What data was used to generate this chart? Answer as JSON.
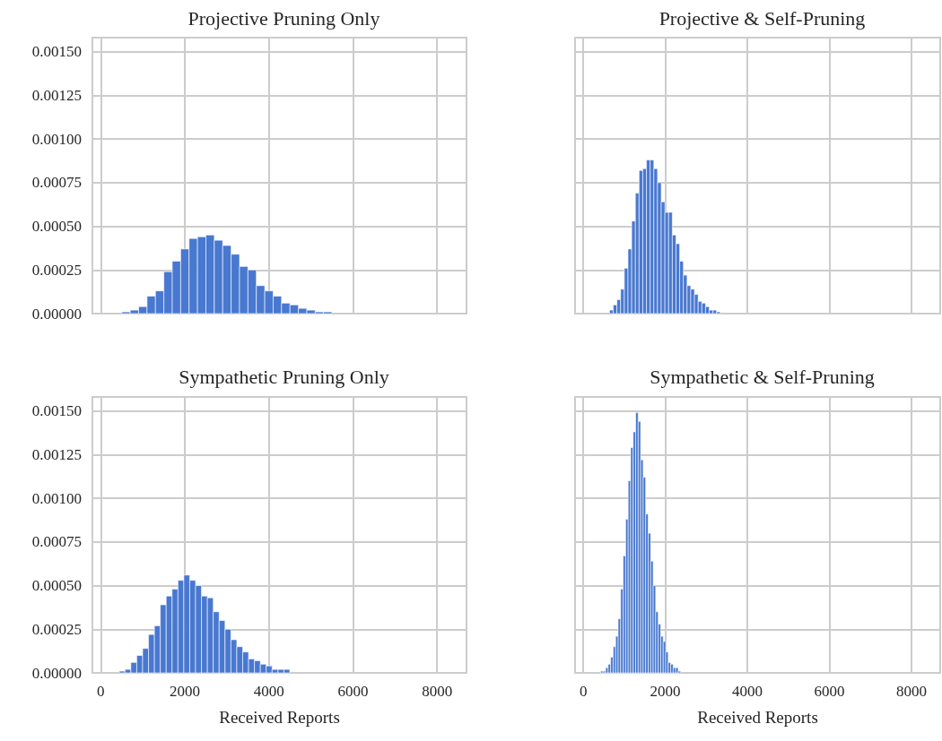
{
  "chart_data": [
    {
      "type": "histogram",
      "title": "Projective Pruning Only",
      "color": "#4878d0",
      "grid": true,
      "tick_labels": "y",
      "xlim": [
        -200,
        8700
      ],
      "xticks": [
        0,
        2000,
        4000,
        6000,
        8000
      ],
      "ylim": [
        0,
        0.00158
      ],
      "yticks": [
        {
          "value": 0,
          "label": "0.00000"
        },
        {
          "value": 0.00025,
          "label": "0.00025"
        },
        {
          "value": 0.0005,
          "label": "0.00050"
        },
        {
          "value": 0.00075,
          "label": "0.00075"
        },
        {
          "value": 0.001,
          "label": "0.00100"
        },
        {
          "value": 0.00125,
          "label": "0.00125"
        },
        {
          "value": 0.0015,
          "label": "0.00150"
        }
      ],
      "bins": [
        500,
        700,
        900,
        1100,
        1300,
        1500,
        1700,
        1900,
        2100,
        2300,
        2500,
        2700,
        2900,
        3100,
        3300,
        3500,
        3700,
        3900,
        4100,
        4300,
        4500,
        4700,
        4900,
        5100,
        5300,
        5500
      ],
      "values": [
        1e-05,
        2e-05,
        4e-05,
        0.0001,
        0.00013,
        0.00024,
        0.0003,
        0.00037,
        0.00043,
        0.00044,
        0.00045,
        0.00042,
        0.00039,
        0.00034,
        0.00027,
        0.00025,
        0.00016,
        0.00013,
        0.0001,
        6e-05,
        5e-05,
        3e-05,
        2e-05,
        1e-05,
        1e-05
      ]
    },
    {
      "type": "histogram",
      "title": "Projective & Self-Pruning",
      "color": "#4878d0",
      "grid": true,
      "tick_labels": false,
      "xlim": [
        -200,
        8700
      ],
      "xticks": [
        0,
        2000,
        4000,
        6000,
        8000
      ],
      "ylim": [
        0,
        0.00158
      ],
      "yticks": [
        {
          "value": 0,
          "label": null
        },
        {
          "value": 0.00025,
          "label": null
        },
        {
          "value": 0.0005,
          "label": null
        },
        {
          "value": 0.00075,
          "label": null
        },
        {
          "value": 0.001,
          "label": null
        },
        {
          "value": 0.00125,
          "label": null
        },
        {
          "value": 0.0015,
          "label": null
        }
      ],
      "bins": [
        640,
        730,
        820,
        910,
        1000,
        1090,
        1180,
        1270,
        1360,
        1450,
        1540,
        1630,
        1720,
        1810,
        1900,
        1990,
        2080,
        2170,
        2260,
        2350,
        2440,
        2530,
        2620,
        2710,
        2800,
        2890,
        2980,
        3070,
        3160,
        3250,
        3340
      ],
      "values": [
        2e-05,
        5e-05,
        8e-05,
        0.00014,
        0.00026,
        0.00037,
        0.00053,
        0.00069,
        0.00082,
        0.00083,
        0.00088,
        0.00088,
        0.00083,
        0.00075,
        0.00064,
        0.00058,
        0.00058,
        0.00045,
        0.0004,
        0.0003,
        0.00022,
        0.00016,
        0.00014,
        0.00011,
        7e-05,
        6e-05,
        4e-05,
        2e-05,
        2e-05,
        1e-05
      ]
    },
    {
      "type": "histogram",
      "title": "Sympathetic Pruning Only",
      "xlabel": "Received Reports",
      "color": "#4878d0",
      "grid": true,
      "xlim": [
        -200,
        8700
      ],
      "xticks": [
        0,
        2000,
        4000,
        6000,
        8000
      ],
      "ylim": [
        0,
        0.00158
      ],
      "yticks": [
        {
          "value": 0,
          "label": "0.00000"
        },
        {
          "value": 0.00025,
          "label": "0.00025"
        },
        {
          "value": 0.0005,
          "label": "0.00050"
        },
        {
          "value": 0.00075,
          "label": "0.00075"
        },
        {
          "value": 0.001,
          "label": "0.00100"
        },
        {
          "value": 0.00125,
          "label": "0.00125"
        },
        {
          "value": 0.0015,
          "label": "0.00150"
        }
      ],
      "bins": [
        435,
        575,
        715,
        855,
        995,
        1135,
        1275,
        1415,
        1555,
        1695,
        1835,
        1975,
        2115,
        2255,
        2395,
        2535,
        2675,
        2815,
        2955,
        3095,
        3235,
        3375,
        3515,
        3655,
        3795,
        3935,
        4075,
        4215,
        4355,
        4495
      ],
      "values": [
        1e-05,
        2e-05,
        6e-05,
        0.0001,
        0.00014,
        0.00022,
        0.00027,
        0.00039,
        0.00044,
        0.00048,
        0.00053,
        0.00056,
        0.00053,
        0.0005,
        0.00044,
        0.00043,
        0.00035,
        0.0003,
        0.00025,
        0.00019,
        0.00015,
        0.00012,
        8e-05,
        7e-05,
        5e-05,
        4e-05,
        2e-05,
        2e-05,
        2e-05
      ]
    },
    {
      "type": "histogram",
      "title": "Sympathetic & Self-Pruning",
      "xlabel": "Received Reports",
      "color": "#4878d0",
      "grid": true,
      "tick_labels": "x",
      "xlim": [
        -200,
        8700
      ],
      "xticks": [
        0,
        2000,
        4000,
        6000,
        8000
      ],
      "ylim": [
        0,
        0.00158
      ],
      "yticks": [
        {
          "value": 0,
          "label": null
        },
        {
          "value": 0.00025,
          "label": null
        },
        {
          "value": 0.0005,
          "label": null
        },
        {
          "value": 0.00075,
          "label": null
        },
        {
          "value": 0.001,
          "label": null
        },
        {
          "value": 0.00125,
          "label": null
        },
        {
          "value": 0.0015,
          "label": null
        }
      ],
      "bins": [
        423,
        484,
        545,
        606,
        667,
        728,
        789,
        850,
        911,
        972,
        1033,
        1094,
        1155,
        1216,
        1277,
        1338,
        1399,
        1460,
        1521,
        1582,
        1643,
        1704,
        1765,
        1826,
        1887,
        1948,
        2009,
        2070,
        2131,
        2192,
        2253,
        2314,
        2375
      ],
      "values": [
        1e-05,
        1e-05,
        3e-05,
        5e-05,
        9e-05,
        0.00015,
        0.00021,
        0.00031,
        0.00048,
        0.00067,
        0.00088,
        0.0011,
        0.00129,
        0.00138,
        0.00149,
        0.00144,
        0.00122,
        0.00112,
        0.00091,
        0.0008,
        0.00064,
        0.0005,
        0.00035,
        0.00028,
        0.00021,
        0.00018,
        0.00012,
        6e-05,
        5e-05,
        3e-05,
        3e-05,
        1e-05
      ]
    }
  ]
}
